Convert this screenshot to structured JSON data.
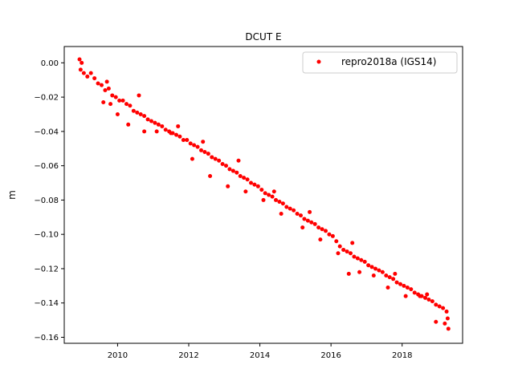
{
  "chart_data": {
    "type": "scatter",
    "title": "DCUT E",
    "xlabel": "",
    "ylabel": "m",
    "xlim": [
      2008.5,
      2019.7
    ],
    "ylim": [
      -0.1635,
      0.0095
    ],
    "xticks": [
      2010,
      2012,
      2014,
      2016,
      2018
    ],
    "xtick_labels": [
      "2010",
      "2012",
      "2014",
      "2016",
      "2018"
    ],
    "yticks": [
      0.0,
      -0.02,
      -0.04,
      -0.06,
      -0.08,
      -0.1,
      -0.12,
      -0.14,
      -0.16
    ],
    "ytick_labels": [
      "0.00",
      "−0.02",
      "−0.04",
      "−0.06",
      "−0.08",
      "−0.10",
      "−0.12",
      "−0.14",
      "−0.16"
    ],
    "grid": false,
    "legend_position": "top-right",
    "series": [
      {
        "name": "repro2018a (IGS14)",
        "color": "#ff0000",
        "marker": "circle",
        "x": [
          2008.93,
          2008.96,
          2008.99,
          2009.05,
          2009.15,
          2009.25,
          2009.35,
          2009.45,
          2009.55,
          2009.65,
          2009.75,
          2009.85,
          2009.95,
          2010.05,
          2010.15,
          2010.25,
          2010.35,
          2010.45,
          2010.55,
          2010.65,
          2010.75,
          2010.85,
          2010.95,
          2011.05,
          2011.15,
          2011.25,
          2011.35,
          2011.45,
          2011.55,
          2011.65,
          2011.75,
          2011.85,
          2011.95,
          2012.05,
          2012.15,
          2012.25,
          2012.35,
          2012.45,
          2012.55,
          2012.65,
          2012.75,
          2012.85,
          2012.95,
          2013.05,
          2013.15,
          2013.25,
          2013.35,
          2013.45,
          2013.55,
          2013.65,
          2013.75,
          2013.85,
          2013.95,
          2014.05,
          2014.15,
          2014.25,
          2014.35,
          2014.45,
          2014.55,
          2014.65,
          2014.75,
          2014.85,
          2014.95,
          2015.05,
          2015.15,
          2015.25,
          2015.35,
          2015.45,
          2015.55,
          2015.65,
          2015.75,
          2015.85,
          2015.95,
          2016.05,
          2016.15,
          2016.25,
          2016.35,
          2016.45,
          2016.55,
          2016.65,
          2016.75,
          2016.85,
          2016.95,
          2017.05,
          2017.15,
          2017.25,
          2017.35,
          2017.45,
          2017.55,
          2017.65,
          2017.75,
          2017.85,
          2017.95,
          2018.05,
          2018.15,
          2018.25,
          2018.35,
          2018.45,
          2018.55,
          2018.65,
          2018.75,
          2018.85,
          2018.95,
          2019.05,
          2019.15,
          2019.25,
          2019.3,
          2009.6,
          2009.8,
          2010.0,
          2010.3,
          2010.75,
          2011.1,
          2011.5,
          2012.1,
          2012.6,
          2013.1,
          2013.6,
          2014.1,
          2014.6,
          2015.2,
          2015.7,
          2016.2,
          2016.5,
          2016.8,
          2017.2,
          2017.6,
          2018.1,
          2018.5,
          2018.95,
          2019.2,
          2019.28,
          2009.7,
          2010.6,
          2011.7,
          2012.4,
          2013.4,
          2014.4,
          2015.4,
          2016.6,
          2017.8,
          2018.7
        ],
        "y": [
          0.002,
          -0.004,
          0.0,
          -0.006,
          -0.008,
          -0.006,
          -0.009,
          -0.012,
          -0.013,
          -0.016,
          -0.015,
          -0.019,
          -0.02,
          -0.022,
          -0.022,
          -0.024,
          -0.025,
          -0.028,
          -0.029,
          -0.03,
          -0.031,
          -0.033,
          -0.034,
          -0.035,
          -0.036,
          -0.037,
          -0.039,
          -0.04,
          -0.041,
          -0.042,
          -0.043,
          -0.045,
          -0.045,
          -0.047,
          -0.048,
          -0.049,
          -0.051,
          -0.052,
          -0.053,
          -0.055,
          -0.056,
          -0.057,
          -0.059,
          -0.06,
          -0.062,
          -0.063,
          -0.064,
          -0.066,
          -0.067,
          -0.068,
          -0.07,
          -0.071,
          -0.072,
          -0.074,
          -0.076,
          -0.077,
          -0.078,
          -0.08,
          -0.081,
          -0.082,
          -0.084,
          -0.085,
          -0.086,
          -0.088,
          -0.089,
          -0.091,
          -0.092,
          -0.093,
          -0.094,
          -0.096,
          -0.097,
          -0.098,
          -0.1,
          -0.101,
          -0.104,
          -0.107,
          -0.109,
          -0.11,
          -0.111,
          -0.113,
          -0.114,
          -0.115,
          -0.116,
          -0.118,
          -0.119,
          -0.12,
          -0.121,
          -0.122,
          -0.124,
          -0.125,
          -0.126,
          -0.128,
          -0.129,
          -0.13,
          -0.131,
          -0.132,
          -0.134,
          -0.135,
          -0.136,
          -0.137,
          -0.138,
          -0.139,
          -0.141,
          -0.142,
          -0.143,
          -0.145,
          -0.155,
          -0.023,
          -0.024,
          -0.03,
          -0.036,
          -0.04,
          -0.04,
          -0.041,
          -0.056,
          -0.066,
          -0.072,
          -0.075,
          -0.08,
          -0.088,
          -0.096,
          -0.103,
          -0.111,
          -0.123,
          -0.122,
          -0.124,
          -0.131,
          -0.136,
          -0.136,
          -0.151,
          -0.152,
          -0.149,
          -0.011,
          -0.019,
          -0.037,
          -0.046,
          -0.057,
          -0.075,
          -0.087,
          -0.105,
          -0.123,
          -0.135
        ]
      }
    ]
  }
}
